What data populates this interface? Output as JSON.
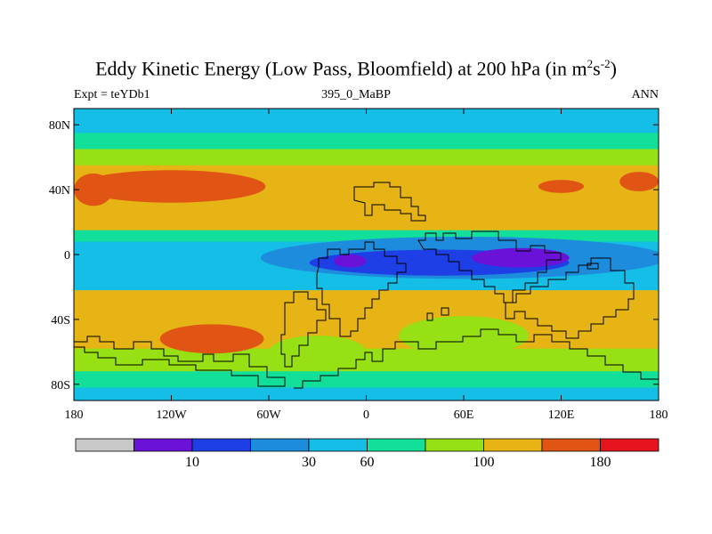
{
  "chart_data": {
    "type": "heatmap",
    "title_main": "Eddy Kinetic Energy (Low Pass, Bloomfield) at 200 hPa (in m",
    "title_units_exp1": "2",
    "title_units_mid": "s",
    "title_units_exp2": "-2",
    "title_units_close": ")",
    "subtitle_left": "Expt = teYDb1",
    "subtitle_center": "395_0_MaBP",
    "subtitle_right": "ANN",
    "x_ticks": [
      "180",
      "120W",
      "60W",
      "0",
      "60E",
      "120E",
      "180"
    ],
    "x_tick_values": [
      -180,
      -120,
      -60,
      0,
      60,
      120,
      180
    ],
    "y_ticks": [
      "80N",
      "40N",
      "0",
      "40S",
      "80S"
    ],
    "y_tick_values": [
      80,
      40,
      0,
      -40,
      -80
    ],
    "xlim": [
      -180,
      180
    ],
    "ylim": [
      -90,
      90
    ],
    "colorbar": {
      "colors": [
        "#c8c8c8",
        "#6a12d8",
        "#1e3fe6",
        "#1e8cdc",
        "#14bee6",
        "#12e09a",
        "#96e014",
        "#e6b414",
        "#e05414",
        "#e6141e"
      ],
      "labels": [
        "10",
        "30",
        "60",
        "100",
        "180"
      ],
      "label_box_edges": [
        2,
        4,
        5,
        7,
        9
      ]
    },
    "bands": [
      {
        "lat_top": 90,
        "lat_bottom": 75,
        "level": 4
      },
      {
        "lat_top": 75,
        "lat_bottom": 65,
        "level": 5
      },
      {
        "lat_top": 65,
        "lat_bottom": 55,
        "level": 6
      },
      {
        "lat_top": 55,
        "lat_bottom": 15,
        "level": 7
      },
      {
        "lat_top": 15,
        "lat_bottom": 8,
        "level": 5
      },
      {
        "lat_top": 8,
        "lat_bottom": -8,
        "level": 4
      },
      {
        "lat_top": -8,
        "lat_bottom": -22,
        "level": 4
      },
      {
        "lat_top": -22,
        "lat_bottom": -58,
        "level": 7
      },
      {
        "lat_top": -58,
        "lat_bottom": -72,
        "level": 6
      },
      {
        "lat_top": -72,
        "lat_bottom": -82,
        "level": 5
      },
      {
        "lat_top": -82,
        "lat_bottom": -90,
        "level": 4
      }
    ],
    "blobs": [
      {
        "lon": -120,
        "lat": 42,
        "dlon": 58,
        "dlat": 10,
        "level": 8
      },
      {
        "lon": -168,
        "lat": 40,
        "dlon": 12,
        "dlat": 10,
        "level": 8
      },
      {
        "lon": 168,
        "lat": 45,
        "dlon": 12,
        "dlat": 6,
        "level": 8
      },
      {
        "lon": 120,
        "lat": 42,
        "dlon": 14,
        "dlat": 4,
        "level": 8
      },
      {
        "lon": -95,
        "lat": -52,
        "dlon": 32,
        "dlat": 9,
        "level": 8
      },
      {
        "lon": 60,
        "lat": -2,
        "dlon": 125,
        "dlat": 13,
        "level": 3
      },
      {
        "lon": 45,
        "lat": -5,
        "dlon": 80,
        "dlat": 8,
        "level": 2
      },
      {
        "lon": 95,
        "lat": -2,
        "dlon": 30,
        "dlat": 6,
        "level": 1
      },
      {
        "lon": -10,
        "lat": -4,
        "dlon": 10,
        "dlat": 4,
        "level": 1
      },
      {
        "lon": 60,
        "lat": -50,
        "dlon": 40,
        "dlat": 12,
        "level": 6
      },
      {
        "lon": -30,
        "lat": -60,
        "dlon": 30,
        "dlat": 10,
        "level": 6
      }
    ]
  }
}
